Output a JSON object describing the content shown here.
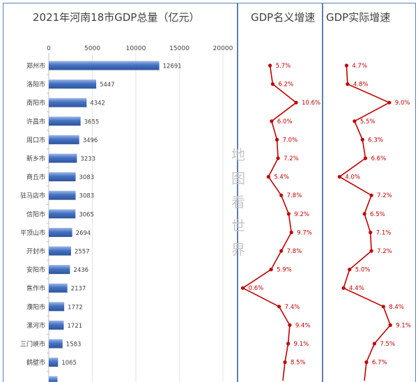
{
  "watermark": [
    "地",
    "图",
    "看",
    "世",
    "界"
  ],
  "chart_data": [
    {
      "type": "bar",
      "orientation": "horizontal",
      "title": "2021年河南18市GDP总量（亿元）",
      "xlim": [
        0,
        20000
      ],
      "ticks": [
        0,
        5000,
        10000,
        15000,
        20000
      ],
      "grid": true,
      "bar_color": "#4472c4",
      "categories": [
        "郑州市",
        "洛阳市",
        "南阳市",
        "许昌市",
        "周口市",
        "新乡市",
        "商丘市",
        "驻马店市",
        "信阳市",
        "平顶山市",
        "开封市",
        "安阳市",
        "焦作市",
        "濮阳市",
        "漯河市",
        "三门峡市",
        "鹤壁市"
      ],
      "values": [
        12691,
        5447,
        4342,
        3655,
        3496,
        3233,
        3083,
        3083,
        3065,
        2694,
        2557,
        2436,
        2137,
        1772,
        1721,
        1583,
        1065
      ],
      "partial_bar_value": 1000
    },
    {
      "type": "line",
      "title": "GDP名义增速",
      "unit": "%",
      "color": "#c00000",
      "categories": [
        "郑州市",
        "洛阳市",
        "南阳市",
        "许昌市",
        "周口市",
        "新乡市",
        "商丘市",
        "驻马店市",
        "信阳市",
        "平顶山市",
        "开封市",
        "安阳市",
        "焦作市",
        "濮阳市",
        "漯河市",
        "三门峡市",
        "鹤壁市"
      ],
      "values": [
        5.7,
        6.2,
        10.6,
        6.0,
        7.0,
        7.2,
        5.4,
        7.8,
        9.2,
        9.7,
        7.8,
        5.9,
        0.6,
        7.4,
        9.4,
        9.1,
        8.5
      ],
      "labels": [
        "5.7%",
        "6.2%",
        "10.6%",
        "6.0%",
        "7.0%",
        "7.2%",
        "5.4%",
        "7.8%",
        "9.2%",
        "9.7%",
        "7.8%",
        "5.9%",
        "0.6%",
        "7.4%",
        "9.4%",
        "9.1%",
        "8.5%"
      ],
      "xlim": [
        0,
        11.5
      ]
    },
    {
      "type": "line",
      "title": "GDP实际增速",
      "unit": "%",
      "color": "#c00000",
      "categories": [
        "郑州市",
        "洛阳市",
        "南阳市",
        "许昌市",
        "周口市",
        "新乡市",
        "商丘市",
        "驻马店市",
        "信阳市",
        "平顶山市",
        "开封市",
        "安阳市",
        "焦作市",
        "濮阳市",
        "漯河市",
        "三门峡市",
        "鹤壁市"
      ],
      "values": [
        4.7,
        4.8,
        9.0,
        5.5,
        6.3,
        6.6,
        4.0,
        7.2,
        6.5,
        7.1,
        7.2,
        5.0,
        4.4,
        8.4,
        9.1,
        7.5,
        6.7
      ],
      "labels": [
        "4.7%",
        "4.8%",
        "9.0%",
        "5.5%",
        "6.3%",
        "6.6%",
        "4.0%",
        "7.2%",
        "6.5%",
        "7.1%",
        "7.2%",
        "5.0%",
        "4.4%",
        "8.4%",
        "9.1%",
        "7.5%",
        "6.7%"
      ],
      "xlim": [
        2.5,
        10.2
      ]
    }
  ]
}
